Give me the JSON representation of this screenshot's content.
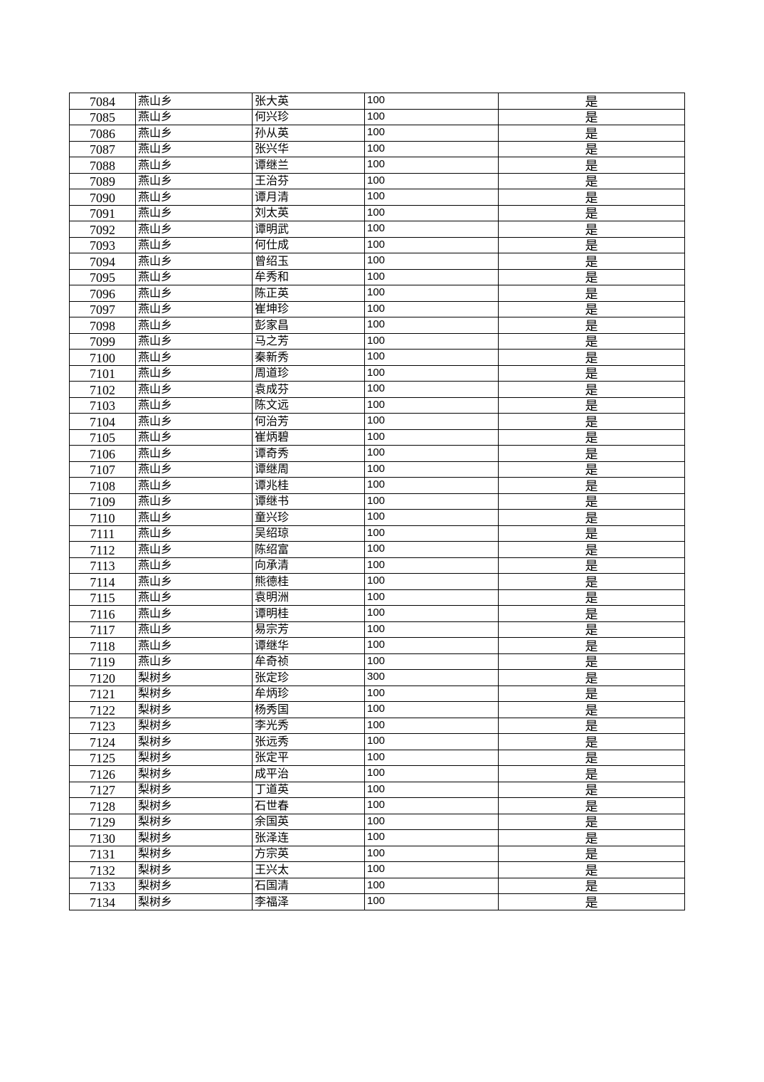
{
  "table": {
    "rows": [
      [
        "7084",
        "燕山乡",
        "张大英",
        "100",
        "是"
      ],
      [
        "7085",
        "燕山乡",
        "何兴珍",
        "100",
        "是"
      ],
      [
        "7086",
        "燕山乡",
        "孙从英",
        "100",
        "是"
      ],
      [
        "7087",
        "燕山乡",
        "张兴华",
        "100",
        "是"
      ],
      [
        "7088",
        "燕山乡",
        "谭继兰",
        "100",
        "是"
      ],
      [
        "7089",
        "燕山乡",
        "王治芬",
        "100",
        "是"
      ],
      [
        "7090",
        "燕山乡",
        "谭月清",
        "100",
        "是"
      ],
      [
        "7091",
        "燕山乡",
        "刘太英",
        "100",
        "是"
      ],
      [
        "7092",
        "燕山乡",
        "谭明武",
        "100",
        "是"
      ],
      [
        "7093",
        "燕山乡",
        "何仕成",
        "100",
        "是"
      ],
      [
        "7094",
        "燕山乡",
        "曾绍玉",
        "100",
        "是"
      ],
      [
        "7095",
        "燕山乡",
        "牟秀和",
        "100",
        "是"
      ],
      [
        "7096",
        "燕山乡",
        "陈正英",
        "100",
        "是"
      ],
      [
        "7097",
        "燕山乡",
        "崔坤珍",
        "100",
        "是"
      ],
      [
        "7098",
        "燕山乡",
        "彭家昌",
        "100",
        "是"
      ],
      [
        "7099",
        "燕山乡",
        "马之芳",
        "100",
        "是"
      ],
      [
        "7100",
        "燕山乡",
        "秦新秀",
        "100",
        "是"
      ],
      [
        "7101",
        "燕山乡",
        "周道珍",
        "100",
        "是"
      ],
      [
        "7102",
        "燕山乡",
        "袁成芬",
        "100",
        "是"
      ],
      [
        "7103",
        "燕山乡",
        "陈文远",
        "100",
        "是"
      ],
      [
        "7104",
        "燕山乡",
        "何治芳",
        "100",
        "是"
      ],
      [
        "7105",
        "燕山乡",
        "崔炳碧",
        "100",
        "是"
      ],
      [
        "7106",
        "燕山乡",
        "谭奇秀",
        "100",
        "是"
      ],
      [
        "7107",
        "燕山乡",
        "谭继周",
        "100",
        "是"
      ],
      [
        "7108",
        "燕山乡",
        "谭兆桂",
        "100",
        "是"
      ],
      [
        "7109",
        "燕山乡",
        "谭继书",
        "100",
        "是"
      ],
      [
        "7110",
        "燕山乡",
        "童兴珍",
        "100",
        "是"
      ],
      [
        "7111",
        "燕山乡",
        "吴绍琼",
        "100",
        "是"
      ],
      [
        "7112",
        "燕山乡",
        "陈绍富",
        "100",
        "是"
      ],
      [
        "7113",
        "燕山乡",
        "向承清",
        "100",
        "是"
      ],
      [
        "7114",
        "燕山乡",
        "熊德桂",
        "100",
        "是"
      ],
      [
        "7115",
        "燕山乡",
        "袁明洲",
        "100",
        "是"
      ],
      [
        "7116",
        "燕山乡",
        "谭明桂",
        "100",
        "是"
      ],
      [
        "7117",
        "燕山乡",
        "易宗芳",
        "100",
        "是"
      ],
      [
        "7118",
        "燕山乡",
        "谭继华",
        "100",
        "是"
      ],
      [
        "7119",
        "燕山乡",
        "牟奇祯",
        "100",
        "是"
      ],
      [
        "7120",
        "梨树乡",
        "张定珍",
        "300",
        "是"
      ],
      [
        "7121",
        "梨树乡",
        "牟炳珍",
        "100",
        "是"
      ],
      [
        "7122",
        "梨树乡",
        "杨秀国",
        "100",
        "是"
      ],
      [
        "7123",
        "梨树乡",
        "李光秀",
        "100",
        "是"
      ],
      [
        "7124",
        "梨树乡",
        "张远秀",
        "100",
        "是"
      ],
      [
        "7125",
        "梨树乡",
        "张定平",
        "100",
        "是"
      ],
      [
        "7126",
        "梨树乡",
        "成平治",
        "100",
        "是"
      ],
      [
        "7127",
        "梨树乡",
        "丁道英",
        "100",
        "是"
      ],
      [
        "7128",
        "梨树乡",
        "石世春",
        "100",
        "是"
      ],
      [
        "7129",
        "梨树乡",
        "余国英",
        "100",
        "是"
      ],
      [
        "7130",
        "梨树乡",
        "张泽连",
        "100",
        "是"
      ],
      [
        "7131",
        "梨树乡",
        "方宗英",
        "100",
        "是"
      ],
      [
        "7132",
        "梨树乡",
        "王兴太",
        "100",
        "是"
      ],
      [
        "7133",
        "梨树乡",
        "石国清",
        "100",
        "是"
      ],
      [
        "7134",
        "梨树乡",
        "李福泽",
        "100",
        "是"
      ]
    ]
  }
}
